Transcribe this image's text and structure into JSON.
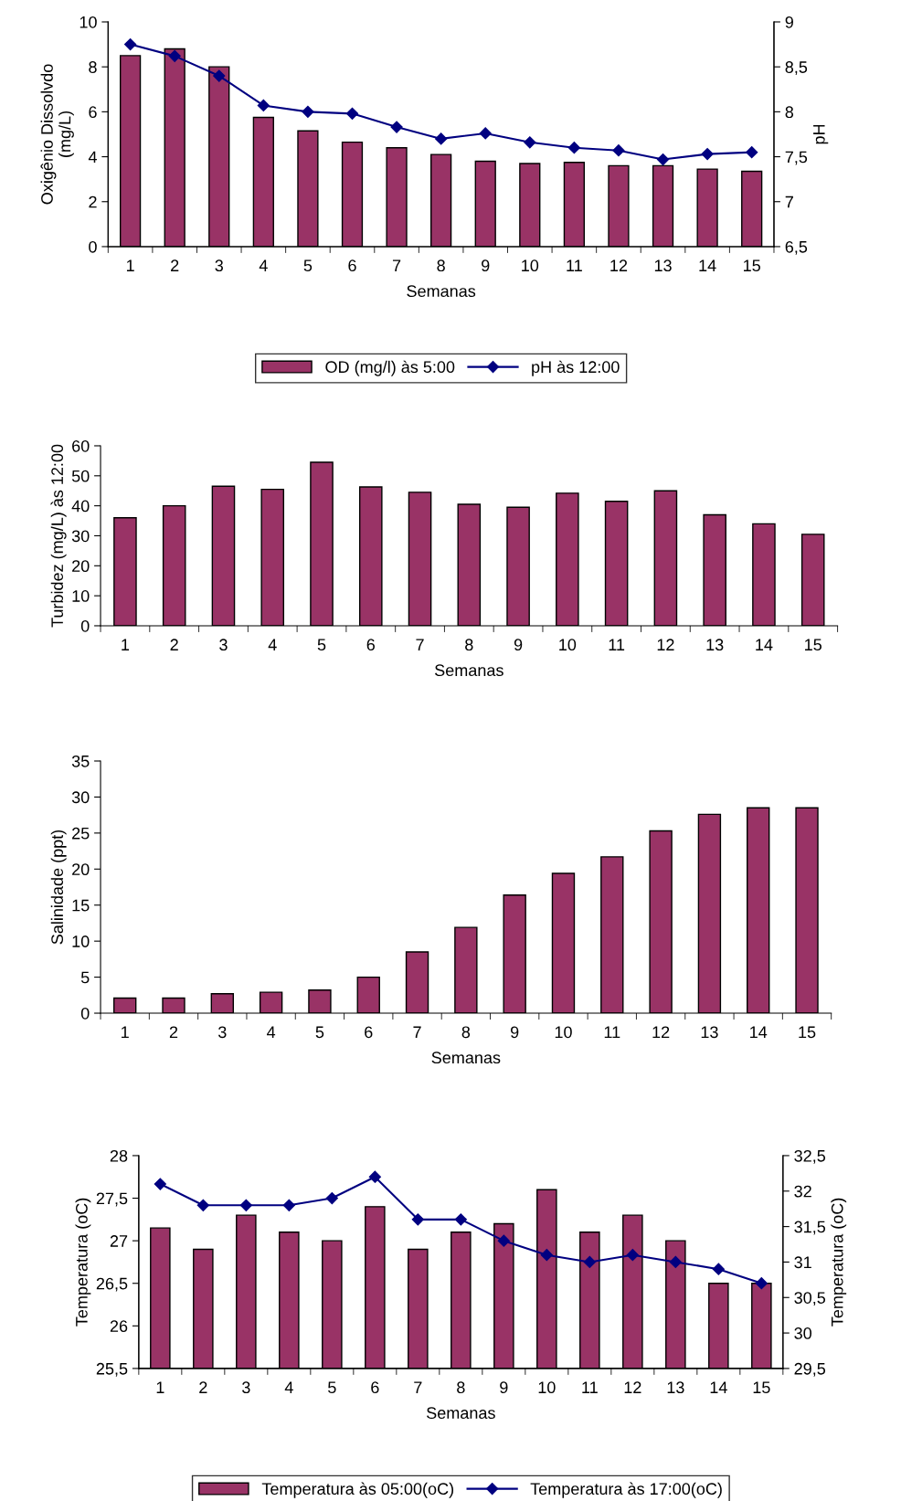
{
  "chart_data": [
    {
      "type": "bar",
      "categories": [
        "1",
        "2",
        "3",
        "4",
        "5",
        "6",
        "7",
        "8",
        "9",
        "10",
        "11",
        "12",
        "13",
        "14",
        "15"
      ],
      "xlabel": "Semanas",
      "ylabel": "Oxigênio Dissolvdo\n(mg/L)",
      "y2label": "pH",
      "legend": "bottom",
      "ylim": [
        0,
        10
      ],
      "yticks": [
        0,
        2,
        4,
        6,
        8,
        10
      ],
      "y2lim": [
        6.5,
        9
      ],
      "y2ticks": [
        {
          "value": 6.5,
          "label": "6,5"
        },
        7,
        {
          "value": 7.5,
          "label": "7,5"
        },
        8,
        {
          "value": 8.5,
          "label": "8,5"
        },
        9
      ],
      "series": [
        {
          "name": "OD (mg/l) às 5:00",
          "color": "#993366",
          "values": [
            8.5,
            8.8,
            8.0,
            5.75,
            5.15,
            4.65,
            4.4,
            4.1,
            3.8,
            3.7,
            3.75,
            3.6,
            3.6,
            3.45,
            3.35
          ]
        },
        {
          "name": "pH às 12:00",
          "type": "line",
          "axis": "y2",
          "marker": "diamond",
          "color": "#000080",
          "values": [
            8.75,
            8.62,
            8.4,
            8.07,
            8.0,
            7.98,
            7.83,
            7.7,
            7.76,
            7.66,
            7.6,
            7.57,
            7.47,
            7.53,
            7.55
          ]
        }
      ]
    },
    {
      "type": "bar",
      "categories": [
        "1",
        "2",
        "3",
        "4",
        "5",
        "6",
        "7",
        "8",
        "9",
        "10",
        "11",
        "12",
        "13",
        "14",
        "15"
      ],
      "xlabel": "Semanas",
      "ylabel": "Turbidez (mg/L) às 12:00",
      "ylim": [
        0,
        60
      ],
      "yticks": [
        0,
        10,
        20,
        30,
        40,
        50,
        60
      ],
      "series": [
        {
          "color": "#993366",
          "values": [
            36,
            40,
            46.5,
            45.5,
            54.5,
            46.3,
            44.5,
            40.5,
            39.5,
            44.2,
            41.5,
            45,
            37,
            34,
            30.5
          ]
        }
      ]
    },
    {
      "type": "bar",
      "categories": [
        "1",
        "2",
        "3",
        "4",
        "5",
        "6",
        "7",
        "8",
        "9",
        "10",
        "11",
        "12",
        "13",
        "14",
        "15"
      ],
      "xlabel": "Semanas",
      "ylabel": "Salinidade (ppt)",
      "ylim": [
        0,
        35
      ],
      "yticks": [
        0,
        5,
        10,
        15,
        20,
        25,
        30,
        35
      ],
      "series": [
        {
          "color": "#993366",
          "values": [
            2.1,
            2.1,
            2.7,
            2.9,
            3.2,
            5.0,
            8.5,
            11.9,
            16.4,
            19.4,
            21.7,
            25.3,
            27.6,
            28.5,
            28.5
          ]
        }
      ]
    },
    {
      "type": "bar",
      "categories": [
        "1",
        "2",
        "3",
        "4",
        "5",
        "6",
        "7",
        "8",
        "9",
        "10",
        "11",
        "12",
        "13",
        "14",
        "15"
      ],
      "xlabel": "Semanas",
      "ylabel": "Temperatura (oC)",
      "y2label": "Temperatura (oC)",
      "legend": "bottom",
      "ylim": [
        25.5,
        28
      ],
      "yticks": [
        {
          "value": 25.5,
          "label": "25,5"
        },
        26,
        {
          "value": 26.5,
          "label": "26,5"
        },
        27,
        {
          "value": 27.5,
          "label": "27,5"
        },
        28
      ],
      "y2lim": [
        29.5,
        32.5
      ],
      "y2ticks": [
        {
          "value": 29.5,
          "label": "29,5"
        },
        30,
        {
          "value": 30.5,
          "label": "30,5"
        },
        31,
        {
          "value": 31.5,
          "label": "31,5"
        },
        32,
        {
          "value": 32.5,
          "label": "32,5"
        }
      ],
      "series": [
        {
          "name": "Temperatura às 05:00(oC)",
          "color": "#993366",
          "values": [
            27.15,
            26.9,
            27.3,
            27.1,
            27.0,
            27.4,
            26.9,
            27.1,
            27.2,
            27.6,
            27.1,
            27.3,
            27.0,
            26.5,
            26.5
          ]
        },
        {
          "name": "Temperatura às 17:00(oC)",
          "type": "line",
          "axis": "y2",
          "marker": "diamond",
          "color": "#000080",
          "values": [
            32.1,
            31.8,
            31.8,
            31.8,
            31.9,
            32.2,
            31.6,
            31.6,
            31.3,
            31.1,
            31.0,
            31.1,
            31.0,
            30.9,
            30.7
          ]
        }
      ]
    }
  ]
}
